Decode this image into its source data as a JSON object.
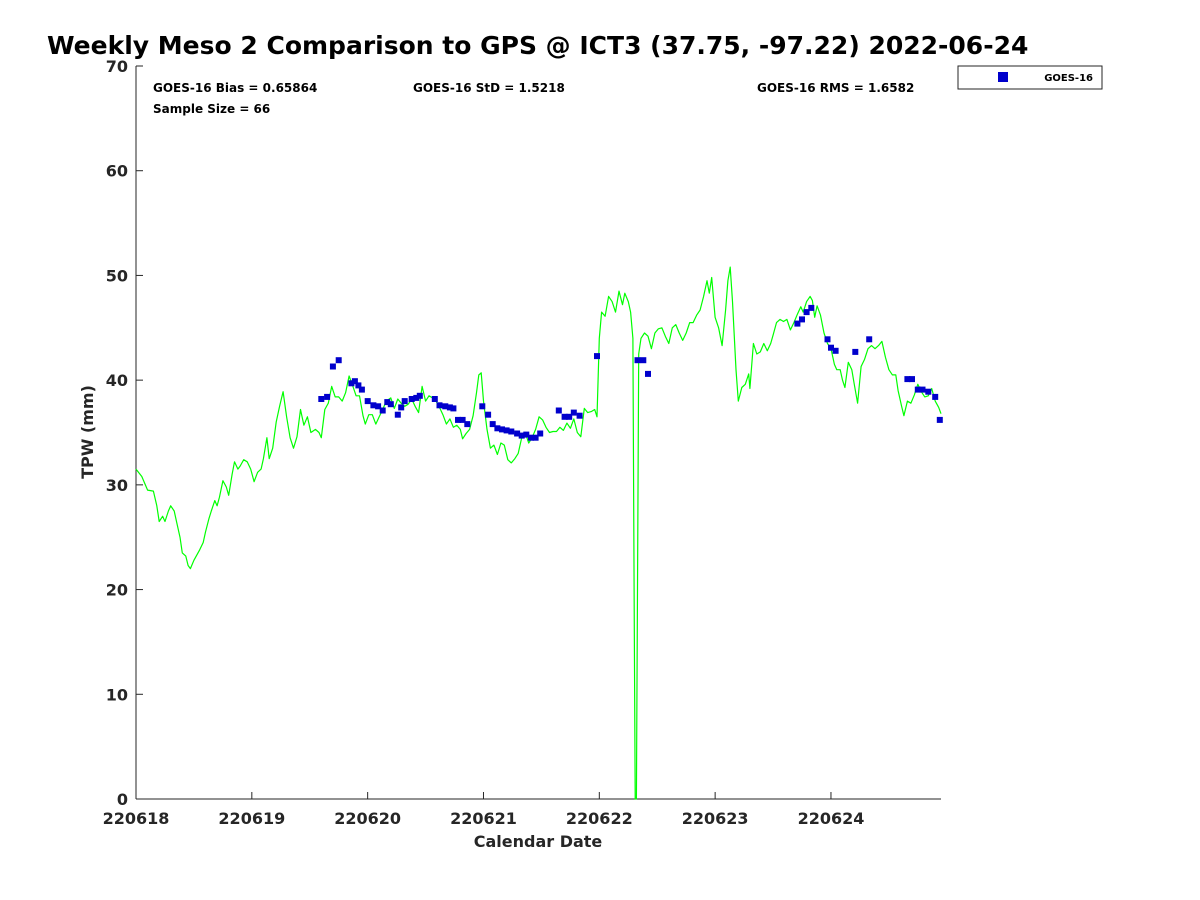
{
  "chart_data": {
    "type": "line",
    "title": "Weekly Meso 2 Comparison to GPS @ ICT3 (37.75, -97.22) 2022-06-24",
    "xlabel": "Calendar Date",
    "ylabel": "TPW (mm)",
    "xlim": [
      0,
      6.95
    ],
    "ylim": [
      0,
      70
    ],
    "x_ticks": [
      0,
      1,
      2,
      3,
      4,
      5,
      6
    ],
    "x_tick_labels": [
      "220618",
      "220619",
      "220620",
      "220621",
      "220622",
      "220623",
      "220624"
    ],
    "y_ticks": [
      0,
      10,
      20,
      30,
      40,
      50,
      60,
      70
    ],
    "y_tick_labels": [
      "0",
      "10",
      "20",
      "30",
      "40",
      "50",
      "60",
      "70"
    ],
    "grid": false,
    "legend_position": "top-right",
    "stats": {
      "bias": "GOES-16 Bias = 0.65864",
      "std": "GOES-16 StD = 1.5218",
      "rms": "GOES-16 RMS = 1.6582",
      "sample": "Sample Size = 66"
    },
    "series": [
      {
        "name": "",
        "type": "line",
        "color": "#00ff00",
        "points": [
          [
            0,
            31.5
          ],
          [
            0.05,
            30.8
          ],
          [
            0.1,
            29.5
          ],
          [
            0.15,
            29.4
          ],
          [
            0.18,
            28
          ],
          [
            0.2,
            26.5
          ],
          [
            0.23,
            27
          ],
          [
            0.25,
            26.5
          ],
          [
            0.28,
            27.5
          ],
          [
            0.3,
            28
          ],
          [
            0.33,
            27.5
          ],
          [
            0.35,
            26.5
          ],
          [
            0.38,
            25
          ],
          [
            0.4,
            23.5
          ],
          [
            0.43,
            23.2
          ],
          [
            0.45,
            22.3
          ],
          [
            0.47,
            22
          ],
          [
            0.5,
            22.8
          ],
          [
            0.55,
            23.8
          ],
          [
            0.58,
            24.5
          ],
          [
            0.6,
            25.5
          ],
          [
            0.63,
            26.8
          ],
          [
            0.65,
            27.5
          ],
          [
            0.68,
            28.5
          ],
          [
            0.7,
            28
          ],
          [
            0.72,
            28.8
          ],
          [
            0.75,
            30.4
          ],
          [
            0.78,
            29.8
          ],
          [
            0.8,
            29
          ],
          [
            0.83,
            31
          ],
          [
            0.85,
            32.2
          ],
          [
            0.88,
            31.5
          ],
          [
            0.9,
            31.8
          ],
          [
            0.93,
            32.4
          ],
          [
            0.96,
            32.2
          ],
          [
            0.99,
            31.5
          ],
          [
            1.02,
            30.3
          ],
          [
            1.05,
            31.2
          ],
          [
            1.08,
            31.5
          ],
          [
            1.1,
            32.5
          ],
          [
            1.13,
            34.5
          ],
          [
            1.15,
            32.5
          ],
          [
            1.18,
            33.5
          ],
          [
            1.21,
            36
          ],
          [
            1.24,
            37.5
          ],
          [
            1.27,
            38.9
          ],
          [
            1.3,
            36.5
          ],
          [
            1.33,
            34.5
          ],
          [
            1.36,
            33.5
          ],
          [
            1.39,
            34.6
          ],
          [
            1.42,
            37.2
          ],
          [
            1.45,
            35.7
          ],
          [
            1.48,
            36.5
          ],
          [
            1.51,
            35
          ],
          [
            1.55,
            35.3
          ],
          [
            1.58,
            35
          ],
          [
            1.6,
            34.5
          ],
          [
            1.63,
            37.2
          ],
          [
            1.66,
            37.8
          ],
          [
            1.69,
            39.4
          ],
          [
            1.72,
            38.4
          ],
          [
            1.75,
            38.4
          ],
          [
            1.78,
            38
          ],
          [
            1.81,
            38.8
          ],
          [
            1.84,
            40.4
          ],
          [
            1.87,
            39.5
          ],
          [
            1.9,
            38.5
          ],
          [
            1.93,
            38.5
          ],
          [
            1.96,
            36.6
          ],
          [
            1.98,
            35.8
          ],
          [
            2.01,
            36.7
          ],
          [
            2.04,
            36.7
          ],
          [
            2.07,
            35.8
          ],
          [
            2.1,
            36.5
          ],
          [
            2.13,
            37.2
          ],
          [
            2.16,
            38
          ],
          [
            2.2,
            38.3
          ],
          [
            2.23,
            37.3
          ],
          [
            2.26,
            38.2
          ],
          [
            2.29,
            37.8
          ],
          [
            2.32,
            37.5
          ],
          [
            2.35,
            37.7
          ],
          [
            2.38,
            38.2
          ],
          [
            2.41,
            37.5
          ],
          [
            2.44,
            36.9
          ],
          [
            2.47,
            39.4
          ],
          [
            2.5,
            38
          ],
          [
            2.53,
            38.5
          ],
          [
            2.56,
            38.3
          ],
          [
            2.59,
            38
          ],
          [
            2.62,
            37.4
          ],
          [
            2.65,
            36.7
          ],
          [
            2.68,
            35.8
          ],
          [
            2.71,
            36.3
          ],
          [
            2.74,
            35.5
          ],
          [
            2.77,
            35.7
          ],
          [
            2.8,
            35.3
          ],
          [
            2.82,
            34.4
          ],
          [
            2.85,
            34.9
          ],
          [
            2.88,
            35.3
          ],
          [
            2.91,
            36.6
          ],
          [
            2.94,
            38.8
          ],
          [
            2.96,
            40.5
          ],
          [
            2.98,
            40.7
          ],
          [
            3.0,
            38
          ],
          [
            3.03,
            35.3
          ],
          [
            3.06,
            33.5
          ],
          [
            3.09,
            33.8
          ],
          [
            3.12,
            32.9
          ],
          [
            3.15,
            34
          ],
          [
            3.18,
            33.8
          ],
          [
            3.21,
            32.4
          ],
          [
            3.24,
            32.1
          ],
          [
            3.27,
            32.5
          ],
          [
            3.3,
            33
          ],
          [
            3.33,
            34.5
          ],
          [
            3.36,
            35
          ],
          [
            3.39,
            34
          ],
          [
            3.42,
            34.5
          ],
          [
            3.45,
            35.3
          ],
          [
            3.48,
            36.5
          ],
          [
            3.51,
            36.2
          ],
          [
            3.54,
            35.5
          ],
          [
            3.57,
            35
          ],
          [
            3.6,
            35.1
          ],
          [
            3.63,
            35.1
          ],
          [
            3.66,
            35.5
          ],
          [
            3.69,
            35.2
          ],
          [
            3.72,
            35.9
          ],
          [
            3.75,
            35.4
          ],
          [
            3.78,
            36.3
          ],
          [
            3.81,
            35
          ],
          [
            3.84,
            34.6
          ],
          [
            3.87,
            37.3
          ],
          [
            3.9,
            36.9
          ],
          [
            3.93,
            37
          ],
          [
            3.96,
            37.2
          ],
          [
            3.98,
            36.5
          ],
          [
            4.0,
            44
          ],
          [
            4.02,
            46.5
          ],
          [
            4.05,
            46.1
          ],
          [
            4.08,
            48
          ],
          [
            4.11,
            47.5
          ],
          [
            4.14,
            46.5
          ],
          [
            4.17,
            48.5
          ],
          [
            4.2,
            47.2
          ],
          [
            4.22,
            48.3
          ],
          [
            4.25,
            47.5
          ],
          [
            4.27,
            46.5
          ],
          [
            4.29,
            44
          ],
          [
            4.3,
            20
          ],
          [
            4.31,
            0
          ],
          [
            4.32,
            0
          ],
          [
            4.33,
            20
          ],
          [
            4.34,
            42.5
          ],
          [
            4.36,
            44
          ],
          [
            4.39,
            44.5
          ],
          [
            4.42,
            44.2
          ],
          [
            4.45,
            43
          ],
          [
            4.48,
            44.5
          ],
          [
            4.51,
            44.9
          ],
          [
            4.54,
            45
          ],
          [
            4.57,
            44.2
          ],
          [
            4.6,
            43.5
          ],
          [
            4.63,
            45
          ],
          [
            4.66,
            45.3
          ],
          [
            4.69,
            44.5
          ],
          [
            4.72,
            43.8
          ],
          [
            4.75,
            44.5
          ],
          [
            4.78,
            45.5
          ],
          [
            4.81,
            45.5
          ],
          [
            4.84,
            46.2
          ],
          [
            4.87,
            46.7
          ],
          [
            4.9,
            48
          ],
          [
            4.93,
            49.5
          ],
          [
            4.95,
            48.3
          ],
          [
            4.97,
            49.8
          ],
          [
            5.0,
            46
          ],
          [
            5.03,
            45
          ],
          [
            5.06,
            43.3
          ],
          [
            5.09,
            46.7
          ],
          [
            5.11,
            49.5
          ],
          [
            5.13,
            50.8
          ],
          [
            5.15,
            47.5
          ],
          [
            5.18,
            41
          ],
          [
            5.2,
            38
          ],
          [
            5.23,
            39.3
          ],
          [
            5.26,
            39.6
          ],
          [
            5.29,
            40.6
          ],
          [
            5.3,
            39.2
          ],
          [
            5.33,
            43.5
          ],
          [
            5.36,
            42.5
          ],
          [
            5.39,
            42.7
          ],
          [
            5.42,
            43.5
          ],
          [
            5.45,
            42.8
          ],
          [
            5.48,
            43.5
          ],
          [
            5.5,
            44.3
          ],
          [
            5.53,
            45.5
          ],
          [
            5.56,
            45.8
          ],
          [
            5.59,
            45.6
          ],
          [
            5.62,
            45.8
          ],
          [
            5.65,
            44.8
          ],
          [
            5.68,
            45.5
          ],
          [
            5.71,
            46.3
          ],
          [
            5.74,
            47
          ],
          [
            5.76,
            46.5
          ],
          [
            5.79,
            47.5
          ],
          [
            5.82,
            48
          ],
          [
            5.84,
            47.6
          ],
          [
            5.86,
            46
          ],
          [
            5.88,
            47.1
          ],
          [
            5.91,
            46.2
          ],
          [
            5.94,
            44.5
          ],
          [
            5.97,
            43.5
          ],
          [
            6.0,
            43
          ],
          [
            6.03,
            41.5
          ],
          [
            6.05,
            41
          ],
          [
            6.08,
            41
          ],
          [
            6.1,
            40
          ],
          [
            6.12,
            39.3
          ],
          [
            6.15,
            41.7
          ],
          [
            6.18,
            41
          ],
          [
            6.2,
            39.7
          ],
          [
            6.23,
            37.8
          ],
          [
            6.26,
            41.3
          ],
          [
            6.29,
            42
          ],
          [
            6.32,
            43
          ],
          [
            6.35,
            43.3
          ],
          [
            6.38,
            43
          ],
          [
            6.41,
            43.3
          ],
          [
            6.44,
            43.7
          ],
          [
            6.47,
            42.2
          ],
          [
            6.5,
            41
          ],
          [
            6.53,
            40.5
          ],
          [
            6.56,
            40.5
          ],
          [
            6.58,
            39
          ],
          [
            6.61,
            37.5
          ],
          [
            6.63,
            36.6
          ],
          [
            6.66,
            38
          ],
          [
            6.69,
            37.8
          ],
          [
            6.72,
            38.6
          ],
          [
            6.75,
            39.6
          ],
          [
            6.78,
            38.9
          ],
          [
            6.81,
            38.4
          ],
          [
            6.84,
            38.5
          ],
          [
            6.87,
            39.2
          ],
          [
            6.9,
            38
          ],
          [
            6.93,
            37.4
          ],
          [
            6.95,
            36.8
          ]
        ]
      },
      {
        "name": "GOES-16",
        "type": "scatter",
        "color": "#0000cc",
        "points": [
          [
            1.6,
            38.2
          ],
          [
            1.65,
            38.4
          ],
          [
            1.7,
            41.3
          ],
          [
            1.75,
            41.9
          ],
          [
            1.86,
            39.7
          ],
          [
            1.89,
            39.9
          ],
          [
            1.92,
            39.5
          ],
          [
            1.95,
            39.1
          ],
          [
            2.0,
            38
          ],
          [
            2.05,
            37.6
          ],
          [
            2.09,
            37.5
          ],
          [
            2.13,
            37.1
          ],
          [
            2.17,
            37.9
          ],
          [
            2.2,
            37.7
          ],
          [
            2.26,
            36.7
          ],
          [
            2.29,
            37.4
          ],
          [
            2.32,
            38
          ],
          [
            2.38,
            38.2
          ],
          [
            2.42,
            38.3
          ],
          [
            2.45,
            38.5
          ],
          [
            2.58,
            38.2
          ],
          [
            2.62,
            37.6
          ],
          [
            2.67,
            37.5
          ],
          [
            2.71,
            37.4
          ],
          [
            2.74,
            37.3
          ],
          [
            2.78,
            36.2
          ],
          [
            2.82,
            36.2
          ],
          [
            2.86,
            35.8
          ],
          [
            2.99,
            37.5
          ],
          [
            3.04,
            36.7
          ],
          [
            3.08,
            35.8
          ],
          [
            3.12,
            35.4
          ],
          [
            3.16,
            35.3
          ],
          [
            3.2,
            35.2
          ],
          [
            3.24,
            35.1
          ],
          [
            3.29,
            34.9
          ],
          [
            3.33,
            34.7
          ],
          [
            3.37,
            34.8
          ],
          [
            3.41,
            34.5
          ],
          [
            3.45,
            34.5
          ],
          [
            3.49,
            34.9
          ],
          [
            3.65,
            37.1
          ],
          [
            3.7,
            36.5
          ],
          [
            3.74,
            36.5
          ],
          [
            3.78,
            36.9
          ],
          [
            3.83,
            36.6
          ],
          [
            3.98,
            42.3
          ],
          [
            4.33,
            41.9
          ],
          [
            4.38,
            41.9
          ],
          [
            4.42,
            40.6
          ],
          [
            5.71,
            45.4
          ],
          [
            5.75,
            45.8
          ],
          [
            5.79,
            46.5
          ],
          [
            5.83,
            46.9
          ],
          [
            5.97,
            43.9
          ],
          [
            6.0,
            43.1
          ],
          [
            6.04,
            42.8
          ],
          [
            6.21,
            42.7
          ],
          [
            6.33,
            43.9
          ],
          [
            6.66,
            40.1
          ],
          [
            6.7,
            40.1
          ],
          [
            6.75,
            39.1
          ],
          [
            6.79,
            39.1
          ],
          [
            6.84,
            38.9
          ],
          [
            6.9,
            38.4
          ],
          [
            6.94,
            36.2
          ]
        ]
      }
    ]
  }
}
